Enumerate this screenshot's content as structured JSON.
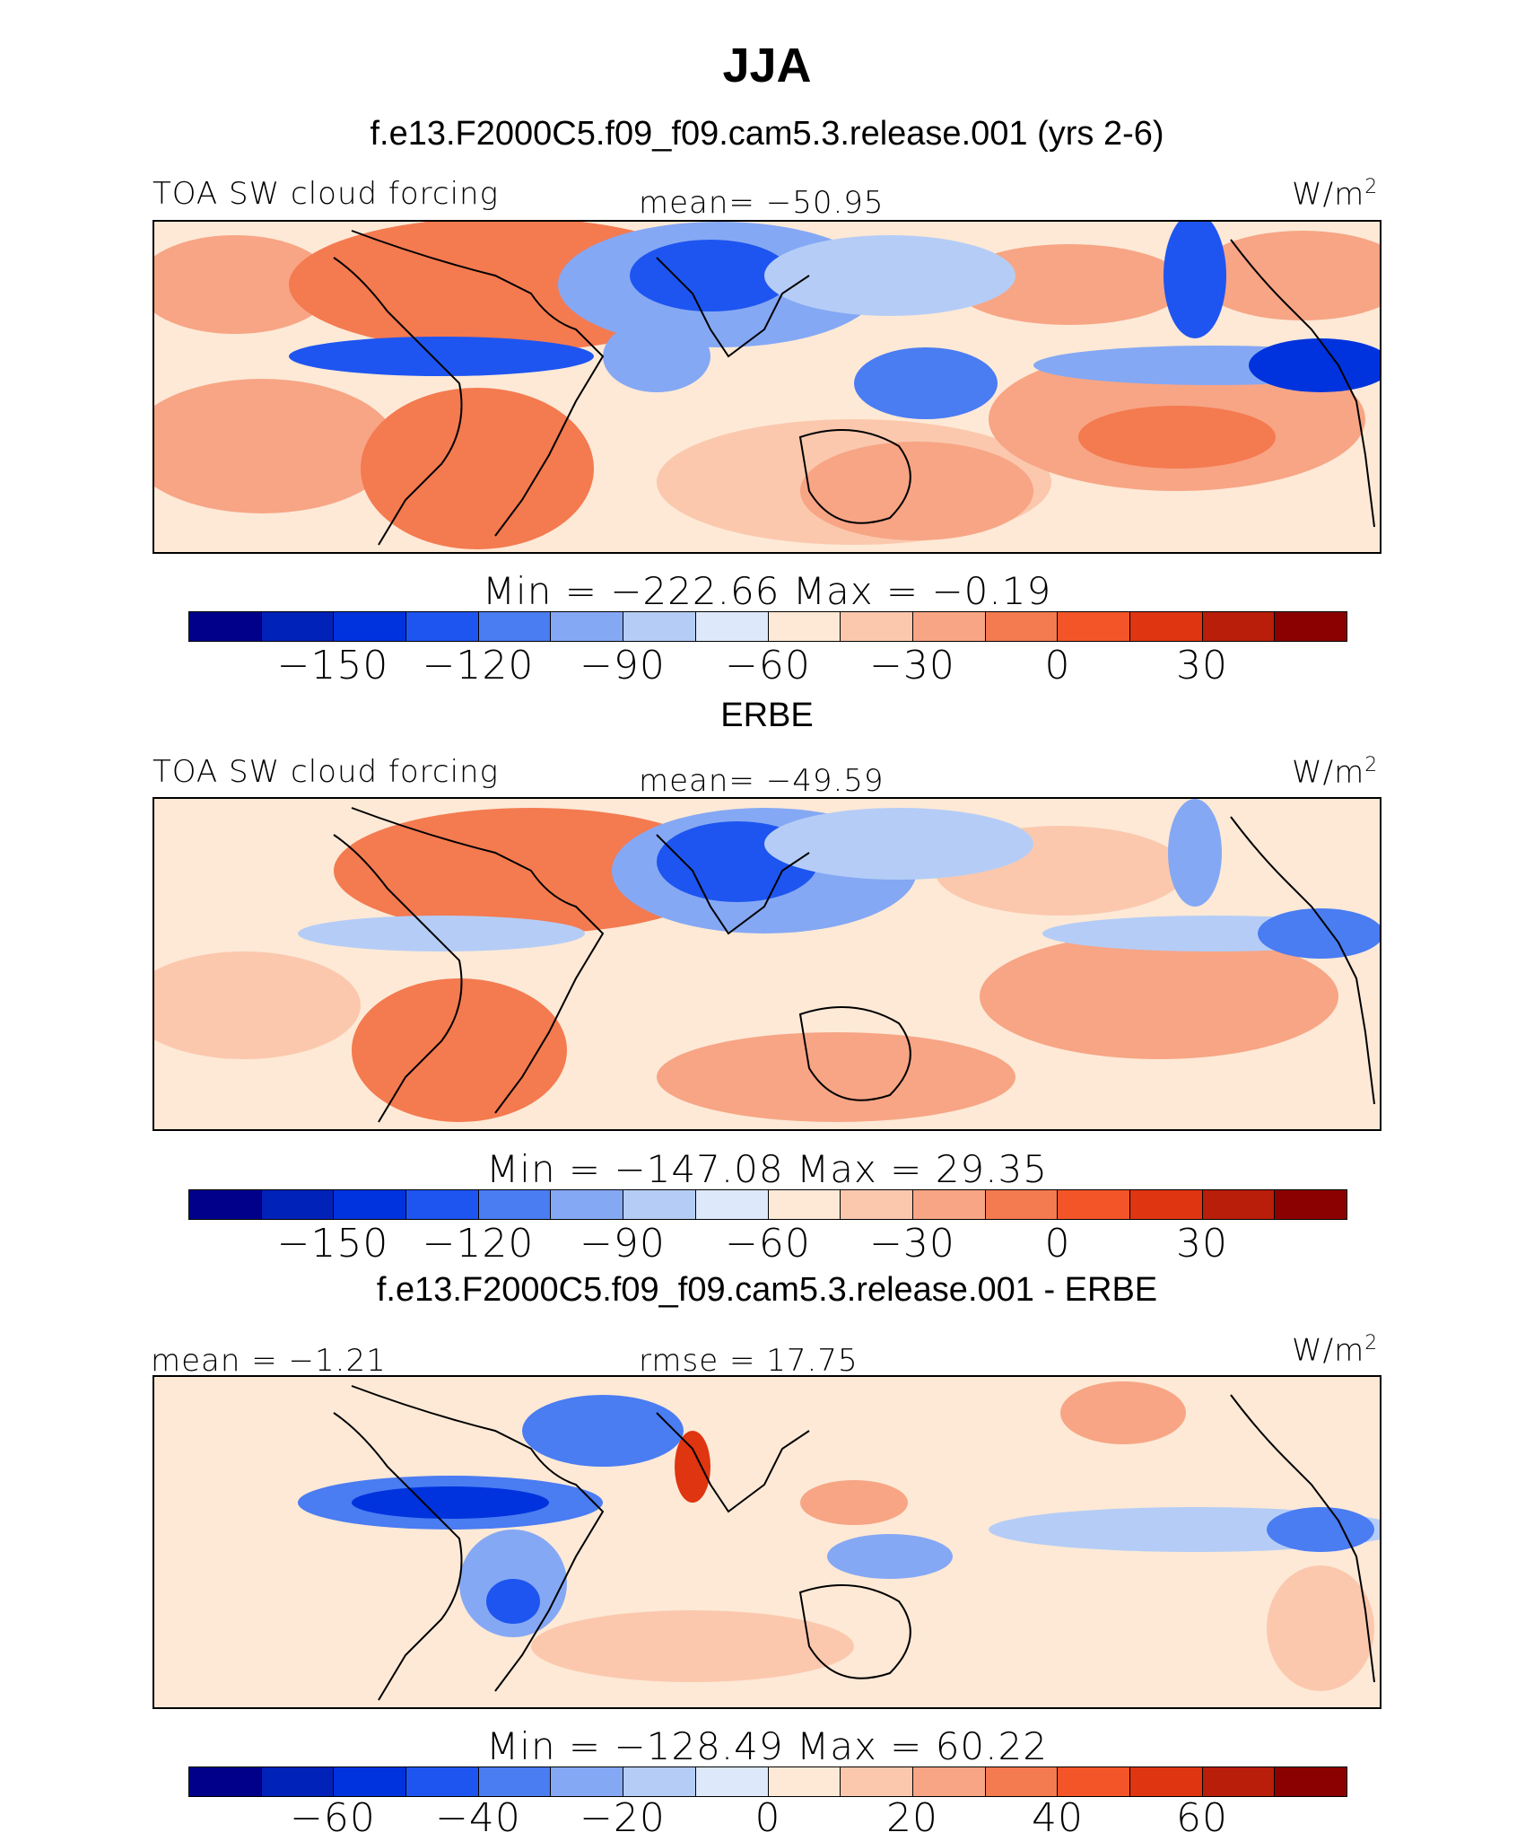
{
  "title": "JJA",
  "colors": [
    "#00008b",
    "#0022b8",
    "#0033dd",
    "#1e55f0",
    "#4a7cf2",
    "#85a8f4",
    "#b5cdf6",
    "#dde9fa",
    "#fde9d6",
    "#fbc8ae",
    "#f7a585",
    "#f47a50",
    "#f45528",
    "#df3511",
    "#b81e0a",
    "#8b0000"
  ],
  "panels": [
    {
      "heading": "f.e13.F2000C5.f09_f09.cam5.3.release.001 (yrs 2-6)",
      "left_label": "TOA SW cloud forcing",
      "center_label": "mean=  −50.95",
      "units": "W/m",
      "units_sup": "2",
      "min_max": "Min  =  −222.66  Max  =    −0.19",
      "ticks": [
        "−150",
        "−120",
        "−90",
        "−60",
        "−30",
        "0",
        "30"
      ]
    },
    {
      "heading": "ERBE",
      "left_label": "TOA SW cloud forcing",
      "center_label": "mean=  −49.59",
      "units": "W/m",
      "units_sup": "2",
      "min_max": "Min  =  −147.08  Max  =    29.35",
      "ticks": [
        "−150",
        "−120",
        "−90",
        "−60",
        "−30",
        "0",
        "30"
      ]
    },
    {
      "heading": "f.e13.F2000C5.f09_f09.cam5.3.release.001 - ERBE",
      "left_label": "mean  =   −1.21",
      "center_label": "rmse  =    17.75",
      "units": "W/m",
      "units_sup": "2",
      "min_max": "Min  =  −128.49  Max  =    60.22",
      "ticks": [
        "−60",
        "−40",
        "−20",
        "0",
        "20",
        "40",
        "60"
      ]
    }
  ]
}
